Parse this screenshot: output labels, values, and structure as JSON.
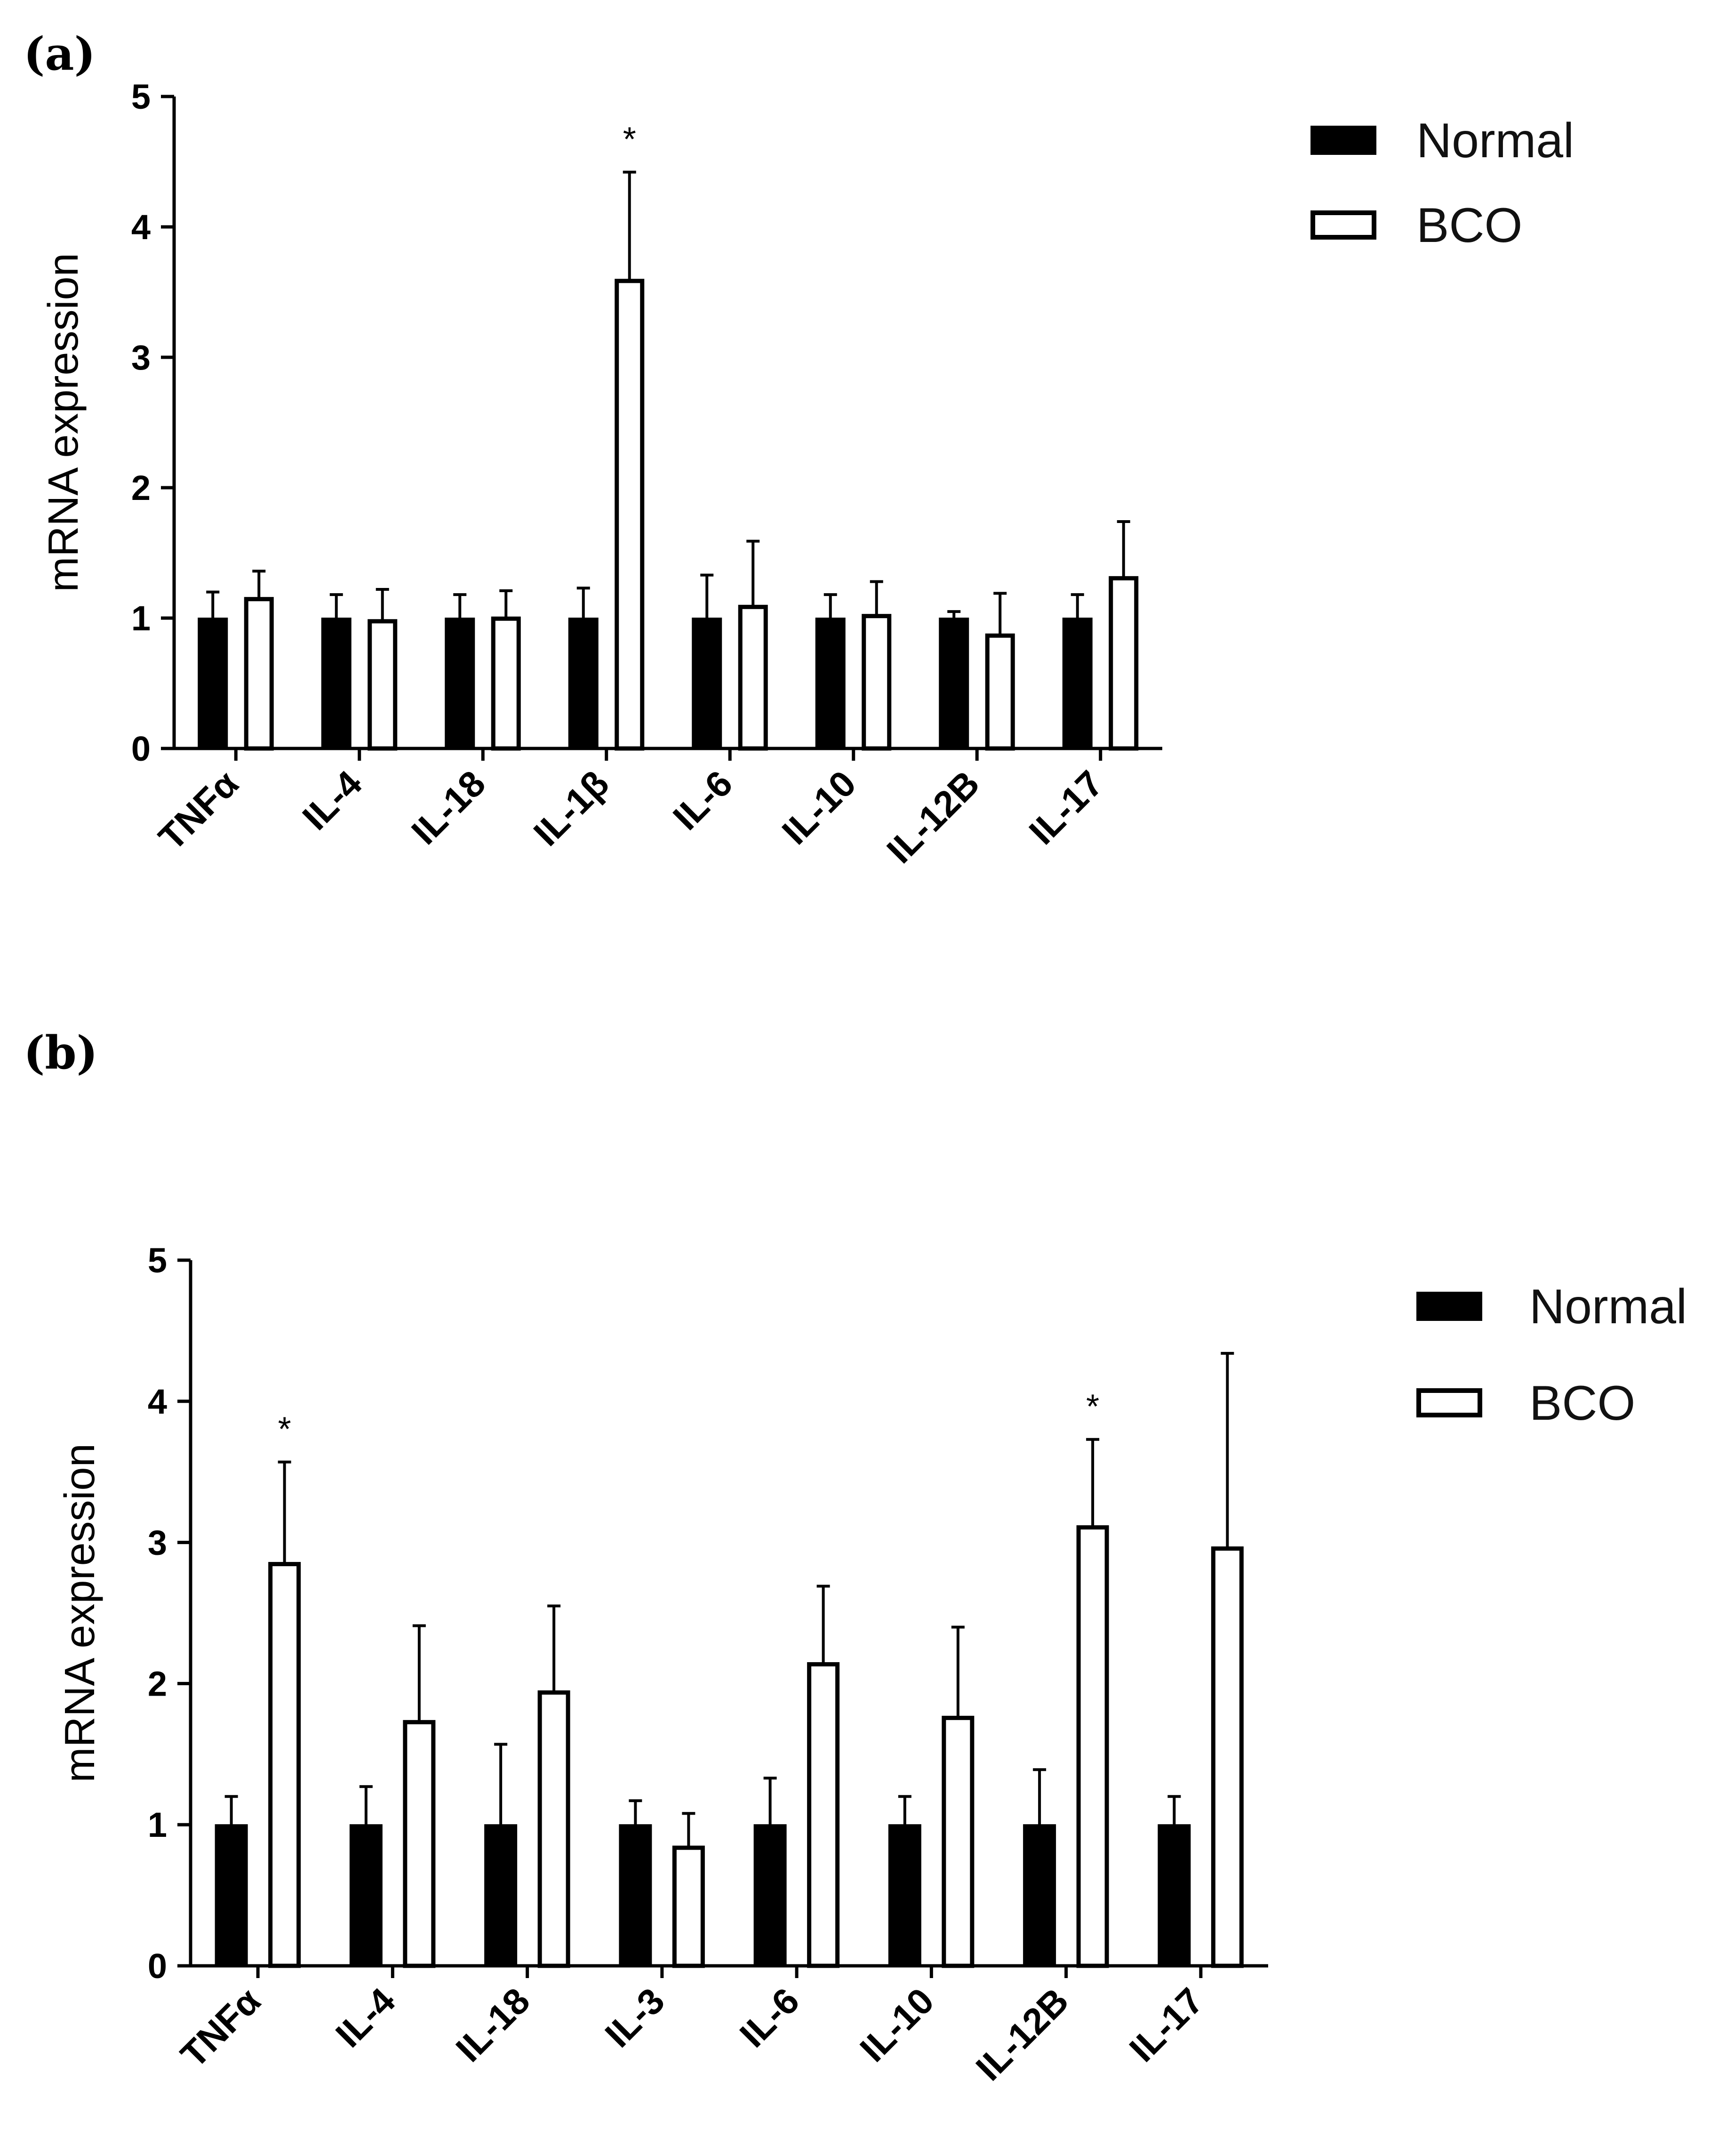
{
  "legend": {
    "normal": "Normal",
    "bco": "BCO"
  },
  "colors": {
    "normal_fill": "#000000",
    "bco_fill": "#ffffff",
    "stroke": "#000000"
  },
  "chart_data": [
    {
      "panel": "(a)",
      "type": "bar",
      "ylabel": "mRNA expression",
      "xlabel": "",
      "ylim": [
        0,
        5
      ],
      "yticks": [
        "0",
        "1",
        "2",
        "3",
        "4",
        "5"
      ],
      "legend_placement": "top-right",
      "categories": [
        "TNFα",
        "IL-4",
        "IL-18",
        "IL-1β",
        "IL-6",
        "IL-10",
        "IL-12B",
        "IL-17"
      ],
      "series": [
        {
          "name": "Normal",
          "values": [
            1.0,
            1.0,
            1.0,
            1.0,
            1.0,
            1.0,
            1.0,
            1.0
          ],
          "errors": [
            0.2,
            0.18,
            0.18,
            0.23,
            0.33,
            0.18,
            0.05,
            0.18
          ]
        },
        {
          "name": "BCO",
          "values": [
            1.16,
            0.99,
            1.01,
            3.6,
            1.1,
            1.03,
            0.88,
            1.32
          ],
          "errors": [
            0.2,
            0.23,
            0.2,
            0.82,
            0.49,
            0.25,
            0.31,
            0.42
          ]
        }
      ],
      "significance": [
        null,
        null,
        null,
        "*",
        null,
        null,
        null,
        null
      ]
    },
    {
      "panel": "(b)",
      "type": "bar",
      "ylabel": "mRNA expression",
      "xlabel": "",
      "ylim": [
        0,
        5
      ],
      "yticks": [
        "0",
        "1",
        "2",
        "3",
        "4",
        "5"
      ],
      "legend_placement": "top-right",
      "categories": [
        "TNFα",
        "IL-4",
        "IL-18",
        "IL-3",
        "IL-6",
        "IL-10",
        "IL-12B",
        "IL-17"
      ],
      "series": [
        {
          "name": "Normal",
          "values": [
            1.0,
            1.0,
            1.0,
            1.0,
            1.0,
            1.0,
            1.0,
            1.0
          ],
          "errors": [
            0.2,
            0.27,
            0.57,
            0.17,
            0.33,
            0.2,
            0.39,
            0.2
          ]
        },
        {
          "name": "BCO",
          "values": [
            2.86,
            1.74,
            1.95,
            0.85,
            2.15,
            1.77,
            3.12,
            2.97
          ],
          "errors": [
            0.71,
            0.67,
            0.6,
            0.23,
            0.54,
            0.63,
            0.61,
            1.37
          ]
        }
      ],
      "significance": [
        "*",
        null,
        null,
        null,
        null,
        null,
        "*",
        null
      ]
    }
  ]
}
